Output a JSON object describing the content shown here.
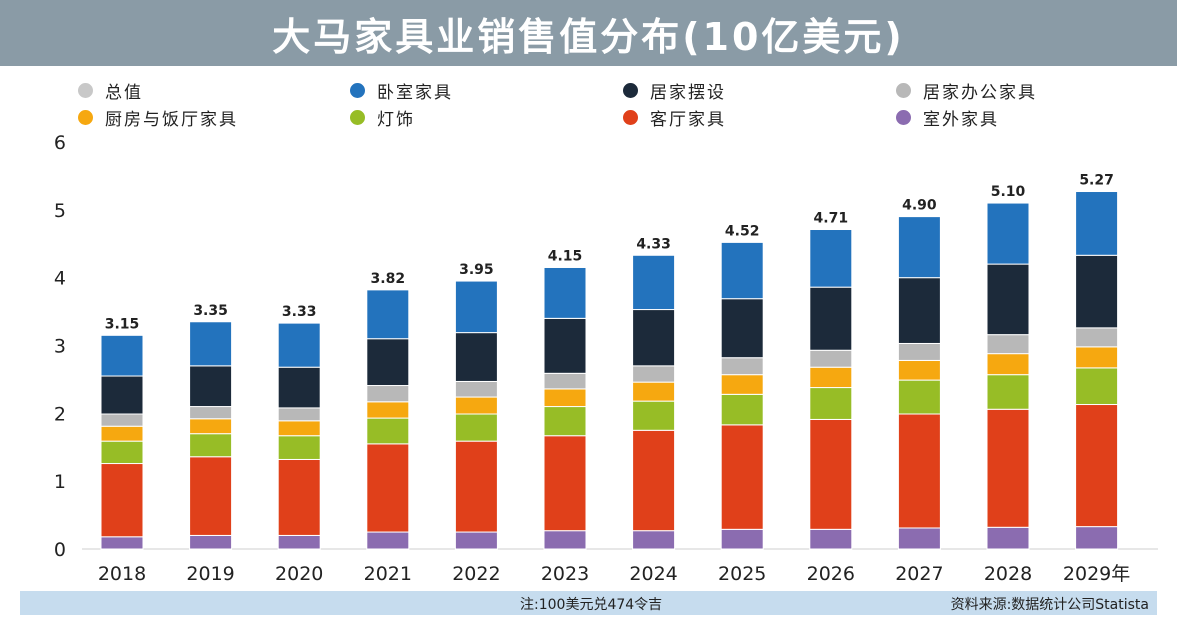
{
  "title": "大马家具业销售值分布(10亿美元)",
  "chart_data": {
    "type": "bar",
    "stacked": true,
    "title": "大马家具业销售值分布(10亿美元)",
    "categories": [
      "2018",
      "2019",
      "2020",
      "2021",
      "2022",
      "2023",
      "2024",
      "2025",
      "2026",
      "2027",
      "2028",
      "2029年"
    ],
    "ylim": [
      0,
      6
    ],
    "yticks": [
      "0",
      "1",
      "2",
      "3",
      "4",
      "5",
      "6"
    ],
    "totals": [
      "3.15",
      "3.35",
      "3.33",
      "3.82",
      "3.95",
      "4.15",
      "4.33",
      "4.52",
      "4.71",
      "4.90",
      "5.10",
      "5.27"
    ],
    "legend": [
      {
        "name": "总值",
        "color": "#c8c8c8"
      },
      {
        "name": "卧室家具",
        "color": "#2373bd"
      },
      {
        "name": "居家摆设",
        "color": "#1c2a3a"
      },
      {
        "name": "居家办公家具",
        "color": "#b8b8b8"
      },
      {
        "name": "厨房与饭厅家具",
        "color": "#f6a810"
      },
      {
        "name": "灯饰",
        "color": "#97bd26"
      },
      {
        "name": "客厅家具",
        "color": "#e0401a"
      },
      {
        "name": "室外家具",
        "color": "#8b6cb0"
      }
    ],
    "series": [
      {
        "name": "室外家具",
        "color": "#8b6cb0",
        "values": [
          0.18,
          0.2,
          0.2,
          0.25,
          0.25,
          0.27,
          0.27,
          0.29,
          0.29,
          0.31,
          0.32,
          0.33
        ]
      },
      {
        "name": "客厅家具",
        "color": "#e0401a",
        "values": [
          1.08,
          1.16,
          1.12,
          1.3,
          1.34,
          1.4,
          1.48,
          1.54,
          1.62,
          1.68,
          1.74,
          1.8
        ]
      },
      {
        "name": "灯饰",
        "color": "#97bd26",
        "values": [
          0.33,
          0.34,
          0.35,
          0.38,
          0.4,
          0.43,
          0.43,
          0.45,
          0.47,
          0.5,
          0.51,
          0.54
        ]
      },
      {
        "name": "厨房与饭厅家具",
        "color": "#f6a810",
        "values": [
          0.22,
          0.22,
          0.22,
          0.24,
          0.25,
          0.26,
          0.28,
          0.29,
          0.3,
          0.29,
          0.31,
          0.31
        ]
      },
      {
        "name": "居家办公家具",
        "color": "#b8b8b8",
        "values": [
          0.18,
          0.18,
          0.19,
          0.24,
          0.23,
          0.23,
          0.24,
          0.25,
          0.25,
          0.25,
          0.28,
          0.28
        ]
      },
      {
        "name": "居家摆设",
        "color": "#1c2a3a",
        "values": [
          0.56,
          0.6,
          0.6,
          0.69,
          0.72,
          0.81,
          0.83,
          0.87,
          0.93,
          0.97,
          1.04,
          1.07
        ]
      },
      {
        "name": "卧室家具",
        "color": "#2373bd",
        "values": [
          0.6,
          0.65,
          0.65,
          0.72,
          0.76,
          0.75,
          0.8,
          0.83,
          0.85,
          0.9,
          0.9,
          0.94
        ]
      }
    ]
  },
  "footer": {
    "note": "注:100美元兑474令吉",
    "source": "资料来源:数据统计公司Statista"
  }
}
